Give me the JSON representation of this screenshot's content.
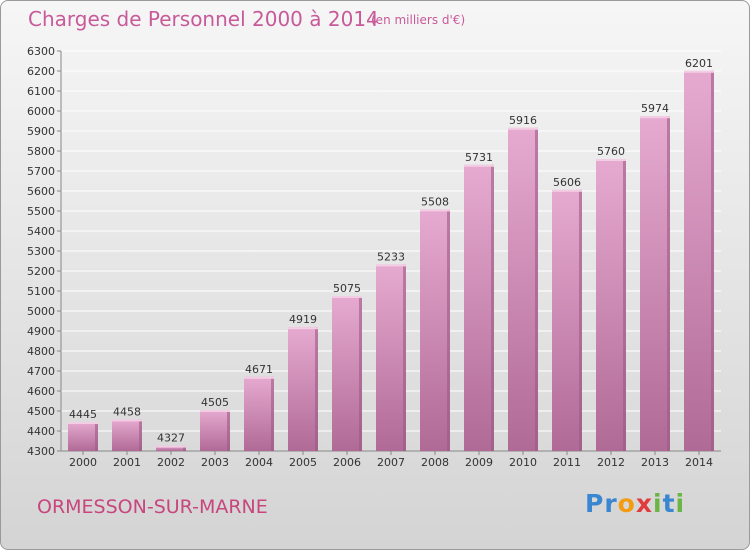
{
  "chart_data": {
    "type": "bar",
    "title": "Charges de Personnel 2000 à 2014",
    "subtitle": "(en milliers d'€)",
    "categories": [
      "2000",
      "2001",
      "2002",
      "2003",
      "2004",
      "2005",
      "2006",
      "2007",
      "2008",
      "2009",
      "2010",
      "2011",
      "2012",
      "2013",
      "2014"
    ],
    "values": [
      4445,
      4458,
      4327,
      4505,
      4671,
      4919,
      5075,
      5233,
      5508,
      5731,
      5916,
      5606,
      5760,
      5974,
      6201
    ],
    "ylim": [
      4300,
      6300
    ],
    "ytick_step": 100,
    "grid": true,
    "xlabel": "",
    "ylabel": ""
  },
  "location": "ORMESSON-SUR-MARNE",
  "brand": {
    "letters": [
      {
        "char": "P",
        "color": "#3a86d0"
      },
      {
        "char": "r",
        "color": "#3a86d0"
      },
      {
        "char": "o",
        "color": "#f39c12"
      },
      {
        "char": "x",
        "color": "#e23b3b"
      },
      {
        "char": "i",
        "color": "#6bb545"
      },
      {
        "char": "t",
        "color": "#3a86d0"
      },
      {
        "char": "i",
        "color": "#6bb545"
      }
    ]
  },
  "colors": {
    "bar_top": "#e6aad0",
    "bar_bottom": "#b06a96",
    "bar_side": "#9c5a84",
    "grid": "#ffffff",
    "text": "#333333"
  }
}
